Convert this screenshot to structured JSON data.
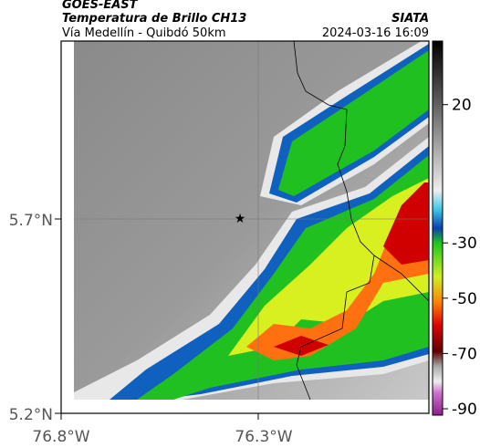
{
  "header": {
    "title": "GOES-EAST",
    "subtitle": "Temperatura de Brillo CH13",
    "source": "SIATA",
    "location": "Vía Medellín - Quibdó 50km",
    "datetime": "2024-03-16 16:09"
  },
  "map": {
    "lat_labels": [
      "5.7°N",
      "5.2°N"
    ],
    "lon_labels": [
      "76.8°W",
      "76.3°W"
    ]
  },
  "colorbar": {
    "ticks": [
      20,
      -30,
      -50,
      -70,
      -90
    ]
  }
}
